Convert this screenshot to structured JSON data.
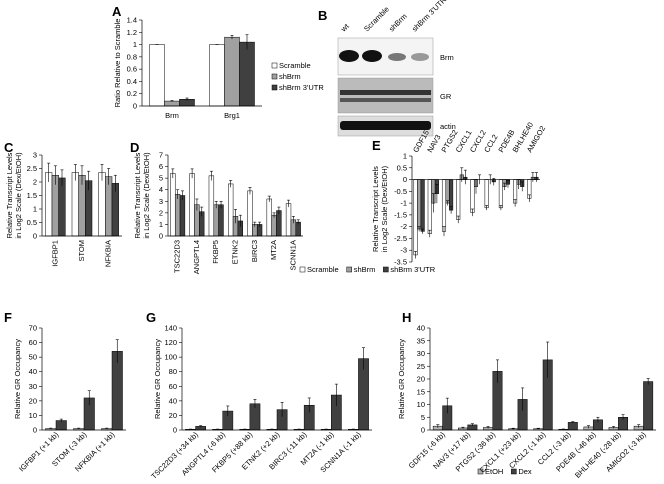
{
  "chart_data": [
    {
      "type": "bar",
      "panel": "A",
      "y_label": [
        "Ratio Relative to Scramble"
      ],
      "categories": [
        "Brm",
        "Brg1"
      ],
      "series": [
        {
          "name": "Scramble",
          "color": "#ffffff",
          "values": [
            1,
            1
          ],
          "errors": [
            0,
            0
          ]
        },
        {
          "name": "shBrm",
          "color": "#a0a0a0",
          "values": [
            0.08,
            1.12
          ],
          "errors": [
            0.01,
            0.03
          ]
        },
        {
          "name": "shBrm 3'UTR",
          "color": "#404040",
          "values": [
            0.11,
            1.04
          ],
          "errors": [
            0.02,
            0.12
          ]
        }
      ],
      "ylim": [
        0,
        1.4
      ],
      "yticks": [
        0,
        0.2,
        0.4,
        0.6,
        0.8,
        1,
        1.2,
        1.4
      ],
      "legend": "right"
    },
    {
      "type": "bar",
      "panel": "C",
      "y_label": [
        "Relative Transcript Levels",
        "in Log2 Scale (Dex/EtOH)"
      ],
      "categories": [
        "IGFBP1",
        "STOM",
        "NFKBIA"
      ],
      "series": [
        {
          "color": "#ffffff",
          "values": [
            2.35,
            2.35,
            2.35
          ],
          "errors": [
            0.35,
            0.3,
            0.3
          ]
        },
        {
          "color": "#a0a0a0",
          "values": [
            2.25,
            2.25,
            2.2
          ],
          "errors": [
            0.35,
            0.35,
            0.3
          ]
        },
        {
          "color": "#404040",
          "values": [
            2.15,
            2.05,
            1.95
          ],
          "errors": [
            0.3,
            0.35,
            0.3
          ]
        }
      ],
      "ylim": [
        0,
        3
      ],
      "yticks": [
        0,
        0.5,
        1,
        1.5,
        2,
        2.5,
        3
      ]
    },
    {
      "type": "bar",
      "panel": "D",
      "y_label": [
        "Relative Transcript Levels",
        "in Log2 Scale (Dex/EtOH)"
      ],
      "categories": [
        "TSC22D3",
        "ANGPTL4",
        "FKBP5",
        "ETNK2",
        "BIRC3",
        "MT2A",
        "SCNN1A"
      ],
      "series": [
        {
          "name": "Scramble",
          "color": "#ffffff",
          "values": [
            5.4,
            5.4,
            5.2,
            4.5,
            3.9,
            3.2,
            2.8
          ],
          "errors": [
            0.4,
            0.4,
            0.4,
            0.3,
            0.3,
            0.25,
            0.3
          ]
        },
        {
          "name": "shBrm",
          "color": "#a0a0a0",
          "values": [
            3.6,
            2.7,
            2.7,
            1.7,
            1.0,
            1.8,
            1.4
          ],
          "errors": [
            0.4,
            0.5,
            0.3,
            0.6,
            0.2,
            0.2,
            0.3
          ]
        },
        {
          "name": "shBrm 3'UTR",
          "color": "#404040",
          "values": [
            3.5,
            2.1,
            2.7,
            1.3,
            1.0,
            2.2,
            1.2
          ],
          "errors": [
            0.4,
            0.4,
            0.3,
            0.5,
            0.2,
            0.3,
            0.2
          ]
        }
      ],
      "ylim": [
        0,
        7
      ],
      "yticks": [
        0,
        1,
        2,
        3,
        4,
        5,
        6,
        7
      ],
      "legend": "bottom"
    },
    {
      "type": "bar",
      "panel": "E",
      "y_label": [
        "Relative Transcript Levels",
        "in Log2 Scale (Dex/EtOH)"
      ],
      "categories": [
        "GDF15",
        "NAV3",
        "PTGS2",
        "CXCL1",
        "CXCL2",
        "CCL2",
        "PDE4B",
        "BHLHE40",
        "AMIGO2"
      ],
      "series": [
        {
          "color": "#ffffff",
          "values": [
            -3.2,
            -2.3,
            -2.2,
            -1.7,
            -1.4,
            -1.2,
            -1.2,
            -1.0,
            -0.8
          ],
          "errors": [
            0.15,
            0.15,
            0.2,
            0.15,
            0.15,
            0.1,
            0.1,
            0.15,
            0.15
          ]
        },
        {
          "color": "#a0a0a0",
          "values": [
            -2.1,
            -1.0,
            -1.0,
            0.2,
            -0.3,
            0.0,
            -0.3,
            -0.2,
            0.1
          ],
          "errors": [
            0.1,
            0.4,
            0.1,
            0.3,
            0.3,
            0.2,
            0.15,
            0.2,
            0.2
          ]
        },
        {
          "color": "#404040",
          "values": [
            -2.2,
            -0.6,
            -1.3,
            0.1,
            0.0,
            -0.1,
            -0.2,
            -0.3,
            0.1
          ],
          "errors": [
            0.1,
            0.4,
            0.15,
            0.3,
            0.2,
            0.15,
            0.15,
            0.2,
            0.2
          ]
        }
      ],
      "ylim": [
        -3.5,
        1
      ],
      "yticks": [
        -3.5,
        -3,
        -2.5,
        -2,
        -1.5,
        -1,
        -0.5,
        0,
        0.5,
        1
      ]
    },
    {
      "type": "bar",
      "panel": "F",
      "y_label": [
        "Relative GR Occupancy"
      ],
      "categories": [
        "IGFBP1 (+1 kb)",
        "STOM (-3 kb)",
        "NFKBIA (+1 kb)"
      ],
      "series": [
        {
          "color": "#b0b0b0",
          "values": [
            1,
            1,
            1
          ],
          "errors": [
            0.3,
            0.3,
            0.3
          ]
        },
        {
          "color": "#404040",
          "values": [
            6.5,
            22,
            54
          ],
          "errors": [
            1,
            5,
            8
          ]
        }
      ],
      "ylim": [
        0,
        70
      ],
      "yticks": [
        0,
        10,
        20,
        30,
        40,
        50,
        60,
        70
      ]
    },
    {
      "type": "bar",
      "panel": "G",
      "y_label": [
        "Relative GR Occupancy"
      ],
      "categories": [
        "TSC22D3 (+34 kb)",
        "ANGPTL4 (-6 kb)",
        "FKBP5 (+88 kb)",
        "ETNK2 (+2 kb)",
        "BIRC3 (-11 kb)",
        "MT2A (-1 kb)",
        "SCNN1A (-1 kb)"
      ],
      "series": [
        {
          "name": "EtOH",
          "color": "#b0b0b0",
          "values": [
            1,
            1,
            1,
            1,
            1,
            1,
            1
          ],
          "errors": [
            0.3,
            0.3,
            0.3,
            0.3,
            0.3,
            0.3,
            0.3
          ]
        },
        {
          "name": "Dex",
          "color": "#404040",
          "values": [
            5,
            26,
            36,
            28,
            34,
            48,
            98
          ],
          "errors": [
            1,
            7,
            6,
            10,
            10,
            15,
            15
          ]
        }
      ],
      "ylim": [
        0,
        140
      ],
      "yticks": [
        0,
        20,
        40,
        60,
        80,
        100,
        120,
        140
      ],
      "legend": "bottom"
    },
    {
      "type": "bar",
      "panel": "H",
      "y_label": [
        "Relative GR Occupancy"
      ],
      "categories": [
        "GDF15 (-6 kb)",
        "NAV3 (+17 kb)",
        "PTGS2 (-36 kb)",
        "CXCL1 (+23 kb)",
        "CXCL2 (-1 kb)",
        "CCL2 (-3 kb)",
        "PDE4B (-46 kb)",
        "BHLHE40 (-28 kb)",
        "AMIGO2 (-3 kb)"
      ],
      "series": [
        {
          "color": "#b0b0b0",
          "values": [
            1.5,
            0.8,
            1,
            0.5,
            0.5,
            0.3,
            1.2,
            1,
            1.5
          ],
          "errors": [
            0.6,
            0.3,
            0.4,
            0.2,
            0.2,
            0.1,
            0.5,
            0.4,
            0.6
          ]
        },
        {
          "color": "#404040",
          "values": [
            9.5,
            2,
            23,
            12,
            27.5,
            3,
            4,
            5,
            19
          ],
          "errors": [
            3,
            0.5,
            4.5,
            4.5,
            7,
            0.3,
            1,
            1,
            1.2
          ]
        }
      ],
      "ylim": [
        0,
        40
      ],
      "yticks": [
        0,
        5,
        10,
        15,
        20,
        25,
        30,
        35,
        40
      ]
    }
  ],
  "blot": {
    "panel": "B",
    "lanes": [
      "wt",
      "Scramble",
      "shBrm",
      "shBrm 3'UTR"
    ],
    "rows": [
      "Brm",
      "GR",
      "actin"
    ]
  }
}
